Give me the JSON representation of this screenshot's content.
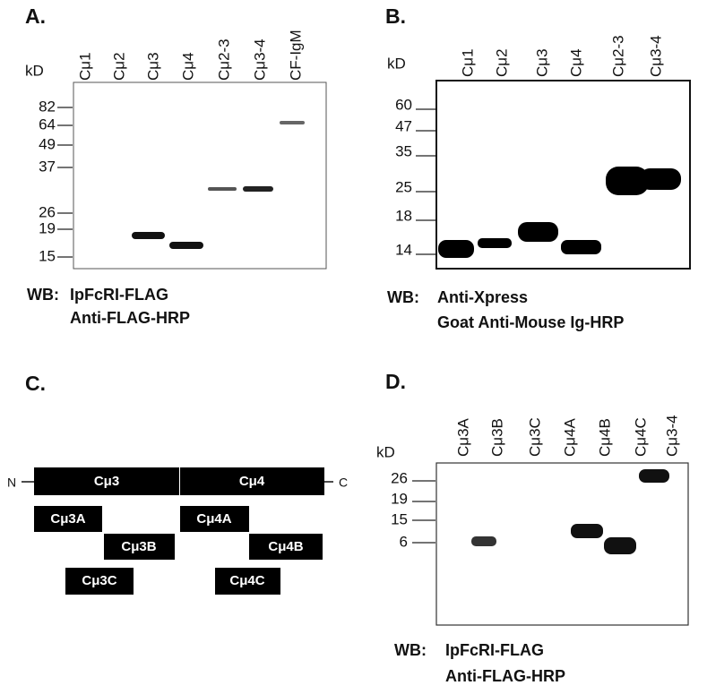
{
  "panels": [
    {
      "label": "A.",
      "unit": "kD",
      "lanes": [
        "Cμ1",
        "Cμ2",
        "Cμ3",
        "Cμ4",
        "Cμ2-3",
        "Cμ3-4",
        "CF-IgM"
      ],
      "markers": [
        "82",
        "64",
        "49",
        "37",
        "26",
        "19",
        "15"
      ],
      "caption": [
        "WB:",
        "IpFcRI-FLAG",
        "Anti-FLAG-HRP"
      ]
    },
    {
      "label": "B.",
      "unit": "kD",
      "lanes": [
        "Cμ1",
        "Cμ2",
        "Cμ3",
        "Cμ4",
        "Cμ2-3",
        "Cμ3-4"
      ],
      "markers": [
        "60",
        "47",
        "35",
        "25",
        "18",
        "14"
      ],
      "caption": [
        "WB:",
        "Anti-Xpress",
        "Goat Anti-Mouse Ig-HRP"
      ]
    },
    {
      "label": "C.",
      "n_terminus": "N",
      "c_terminus": "C",
      "domains": [
        "Cμ3",
        "Cμ4"
      ],
      "fragments": [
        "Cμ3A",
        "Cμ3B",
        "Cμ3C",
        "Cμ4A",
        "Cμ4B",
        "Cμ4C"
      ]
    },
    {
      "label": "D.",
      "unit": "kD",
      "lanes": [
        "Cμ3A",
        "Cμ3B",
        "Cμ3C",
        "Cμ4A",
        "Cμ4B",
        "Cμ4C",
        "Cμ3-4"
      ],
      "markers": [
        "26",
        "19",
        "15",
        "6"
      ],
      "caption": [
        "WB:",
        "IpFcRI-FLAG",
        "Anti-FLAG-HRP"
      ]
    }
  ]
}
